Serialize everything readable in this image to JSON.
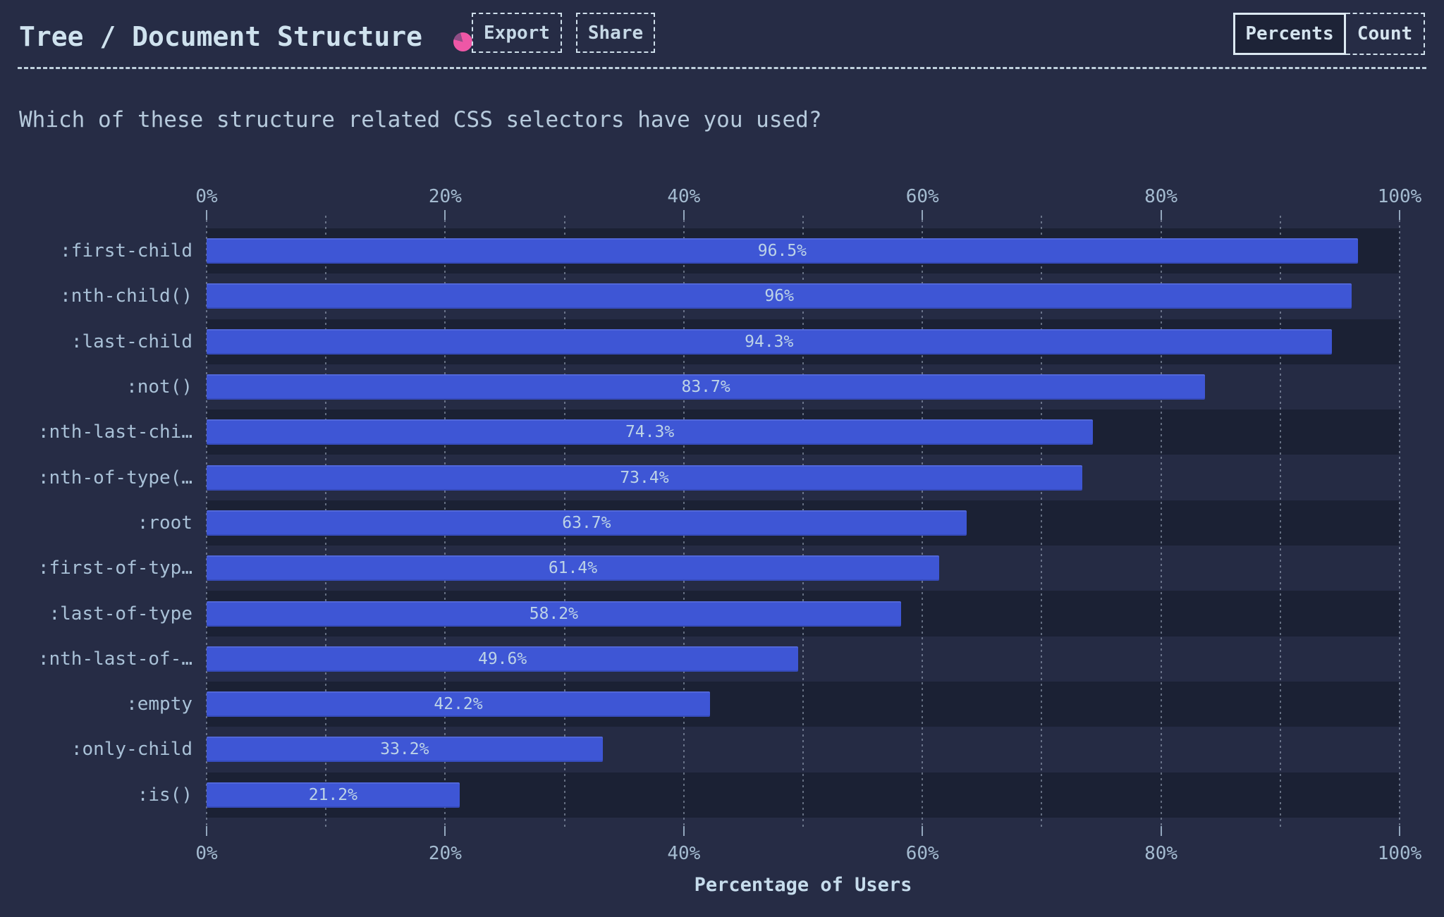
{
  "header": {
    "title": "Tree / Document Structure",
    "pie_icon": "pie-chart-icon",
    "export_label": "Export",
    "share_label": "Share",
    "units_toggle": {
      "active": "Percents",
      "inactive": "Count"
    }
  },
  "question": "Which of these structure related CSS selectors have you used?",
  "chart_data": {
    "type": "bar",
    "orientation": "horizontal",
    "title": "Tree / Document Structure",
    "xlabel": "Percentage of Users",
    "xlim": [
      0,
      100
    ],
    "x_tick_labels": [
      "0%",
      "20%",
      "40%",
      "60%",
      "80%",
      "100%"
    ],
    "minor_grid_step_percent": 10,
    "grid": "dotted-vertical",
    "legend": "none",
    "categories": [
      ":first-child",
      ":nth-child()",
      ":last-child",
      ":not()",
      ":nth-last-chi…",
      ":nth-of-type(…",
      ":root",
      ":first-of-typ…",
      ":last-of-type",
      ":nth-last-of-…",
      ":empty",
      ":only-child",
      ":is()"
    ],
    "values": [
      96.5,
      96,
      94.3,
      83.7,
      74.3,
      73.4,
      63.7,
      61.4,
      58.2,
      49.6,
      42.2,
      33.2,
      21.2
    ],
    "value_labels": [
      "96.5%",
      "96%",
      "94.3%",
      "83.7%",
      "74.3%",
      "73.4%",
      "63.7%",
      "61.4%",
      "58.2%",
      "49.6%",
      "42.2%",
      "33.2%",
      "21.2%"
    ]
  },
  "colors": {
    "page_background": "#262c45",
    "stripe_dark": "#1b2134",
    "stripe_light": "#252b44",
    "bar": "#3e56d5",
    "accent_pink": "#ee57a6",
    "accent_pink_dark": "#8f4d85",
    "text_bright": "#cfe2ee",
    "border_light": "#cfdfeb"
  }
}
